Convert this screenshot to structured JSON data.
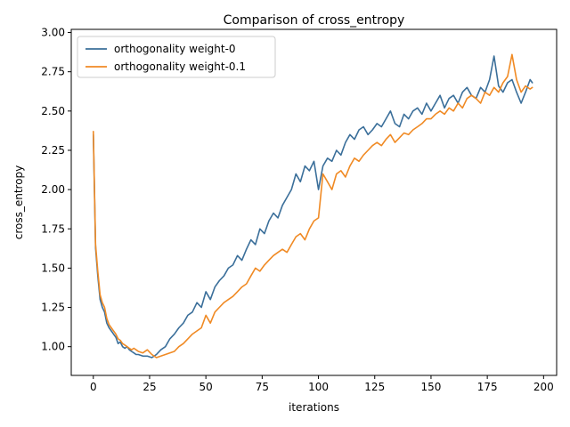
{
  "chart_data": {
    "type": "line",
    "title": "Comparison of cross_entropy",
    "xlabel": "iterations",
    "ylabel": "cross_entropy",
    "xlim": [
      -9.8,
      205.8
    ],
    "ylim": [
      0.817,
      3.02
    ],
    "xticks": [
      0,
      25,
      50,
      75,
      100,
      125,
      150,
      175,
      200
    ],
    "xtick_labels": [
      "0",
      "25",
      "50",
      "75",
      "100",
      "125",
      "150",
      "175",
      "200"
    ],
    "yticks": [
      1.0,
      1.25,
      1.5,
      1.75,
      2.0,
      2.25,
      2.5,
      2.75,
      3.0
    ],
    "ytick_labels": [
      "1.00",
      "1.25",
      "1.50",
      "1.75",
      "2.00",
      "2.25",
      "2.50",
      "2.75",
      "3.00"
    ],
    "grid": false,
    "legend_position": "upper left",
    "series": [
      {
        "name": "orthogonality weight-0",
        "color": "#3b6f9a",
        "x": [
          0,
          1,
          2,
          3,
          4,
          5,
          6,
          7,
          8,
          9,
          10,
          11,
          12,
          13,
          14,
          15,
          16,
          17,
          18,
          19,
          20,
          22,
          24,
          26,
          28,
          30,
          32,
          34,
          36,
          38,
          40,
          42,
          44,
          46,
          48,
          50,
          52,
          54,
          56,
          58,
          60,
          62,
          64,
          66,
          68,
          70,
          72,
          74,
          76,
          78,
          80,
          82,
          84,
          86,
          88,
          90,
          92,
          94,
          96,
          98,
          100,
          102,
          104,
          106,
          108,
          110,
          112,
          114,
          116,
          118,
          120,
          122,
          124,
          126,
          128,
          130,
          132,
          134,
          136,
          138,
          140,
          142,
          144,
          146,
          148,
          150,
          152,
          154,
          156,
          158,
          160,
          162,
          164,
          166,
          168,
          170,
          172,
          174,
          176,
          178,
          180,
          182,
          184,
          186,
          188,
          190,
          192,
          194,
          195
        ],
        "y": [
          2.35,
          1.63,
          1.45,
          1.3,
          1.25,
          1.22,
          1.15,
          1.12,
          1.1,
          1.08,
          1.06,
          1.02,
          1.03,
          1.0,
          0.99,
          1.0,
          0.98,
          0.97,
          0.96,
          0.95,
          0.95,
          0.94,
          0.94,
          0.93,
          0.95,
          0.98,
          1.0,
          1.05,
          1.08,
          1.12,
          1.15,
          1.2,
          1.22,
          1.28,
          1.25,
          1.35,
          1.3,
          1.38,
          1.42,
          1.45,
          1.5,
          1.52,
          1.58,
          1.55,
          1.62,
          1.68,
          1.65,
          1.75,
          1.72,
          1.8,
          1.85,
          1.82,
          1.9,
          1.95,
          2.0,
          2.1,
          2.05,
          2.15,
          2.12,
          2.18,
          2.0,
          2.15,
          2.2,
          2.18,
          2.25,
          2.22,
          2.3,
          2.35,
          2.32,
          2.38,
          2.4,
          2.35,
          2.38,
          2.42,
          2.4,
          2.45,
          2.5,
          2.42,
          2.4,
          2.48,
          2.45,
          2.5,
          2.52,
          2.48,
          2.55,
          2.5,
          2.55,
          2.6,
          2.52,
          2.58,
          2.6,
          2.55,
          2.62,
          2.65,
          2.6,
          2.58,
          2.65,
          2.62,
          2.7,
          2.85,
          2.66,
          2.62,
          2.68,
          2.7,
          2.62,
          2.55,
          2.62,
          2.7,
          2.68
        ]
      },
      {
        "name": "orthogonality weight-0.1",
        "color": "#f08a24",
        "x": [
          0,
          1,
          2,
          3,
          4,
          5,
          6,
          7,
          8,
          9,
          10,
          11,
          12,
          13,
          14,
          15,
          16,
          17,
          18,
          19,
          20,
          22,
          24,
          26,
          28,
          30,
          32,
          34,
          36,
          38,
          40,
          42,
          44,
          46,
          48,
          50,
          52,
          54,
          56,
          58,
          60,
          62,
          64,
          66,
          68,
          70,
          72,
          74,
          76,
          78,
          80,
          82,
          84,
          86,
          88,
          90,
          92,
          94,
          96,
          98,
          100,
          102,
          104,
          106,
          108,
          110,
          112,
          114,
          116,
          118,
          120,
          122,
          124,
          126,
          128,
          130,
          132,
          134,
          136,
          138,
          140,
          142,
          144,
          146,
          148,
          150,
          152,
          154,
          156,
          158,
          160,
          162,
          164,
          166,
          168,
          170,
          172,
          174,
          176,
          178,
          180,
          182,
          184,
          186,
          188,
          190,
          192,
          194,
          195
        ],
        "y": [
          2.37,
          1.65,
          1.48,
          1.33,
          1.28,
          1.25,
          1.18,
          1.14,
          1.12,
          1.1,
          1.08,
          1.05,
          1.04,
          1.02,
          1.01,
          1.0,
          0.99,
          0.98,
          0.99,
          0.98,
          0.97,
          0.96,
          0.98,
          0.95,
          0.93,
          0.94,
          0.95,
          0.96,
          0.97,
          1.0,
          1.02,
          1.05,
          1.08,
          1.1,
          1.12,
          1.2,
          1.15,
          1.22,
          1.25,
          1.28,
          1.3,
          1.32,
          1.35,
          1.38,
          1.4,
          1.45,
          1.5,
          1.48,
          1.52,
          1.55,
          1.58,
          1.6,
          1.62,
          1.6,
          1.65,
          1.7,
          1.72,
          1.68,
          1.75,
          1.8,
          1.82,
          2.1,
          2.05,
          2.0,
          2.1,
          2.12,
          2.08,
          2.15,
          2.2,
          2.18,
          2.22,
          2.25,
          2.28,
          2.3,
          2.28,
          2.32,
          2.35,
          2.3,
          2.33,
          2.36,
          2.35,
          2.38,
          2.4,
          2.42,
          2.45,
          2.45,
          2.48,
          2.5,
          2.48,
          2.52,
          2.5,
          2.55,
          2.52,
          2.58,
          2.6,
          2.58,
          2.55,
          2.62,
          2.6,
          2.65,
          2.62,
          2.68,
          2.72,
          2.86,
          2.7,
          2.62,
          2.66,
          2.64,
          2.65
        ]
      }
    ]
  }
}
